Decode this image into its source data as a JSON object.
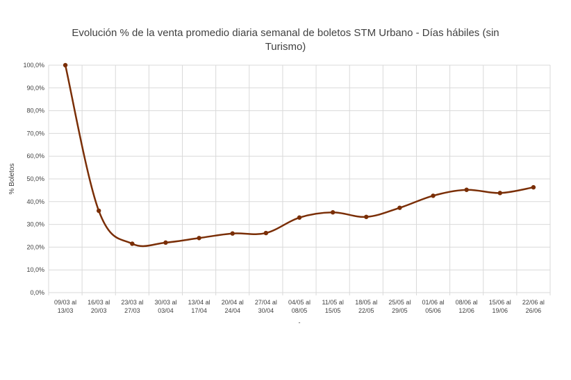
{
  "chart_data": {
    "type": "line",
    "title_lines": [
      "Evolución % de la venta promedio diaria semanal de boletos STM Urbano - Días hábiles (sin",
      "Turismo)"
    ],
    "ylabel": "% Boletos",
    "xlabel": "-",
    "ylim": [
      0,
      100
    ],
    "y_ticks": [
      "0,0%",
      "10,0%",
      "20,0%",
      "30,0%",
      "40,0%",
      "50,0%",
      "60,0%",
      "70,0%",
      "80,0%",
      "90,0%",
      "100,0%"
    ],
    "categories": [
      [
        "09/03 al",
        "13/03"
      ],
      [
        "16/03 al",
        "20/03"
      ],
      [
        "23/03 al",
        "27/03"
      ],
      [
        "30/03 al",
        "03/04"
      ],
      [
        "13/04 al",
        "17/04"
      ],
      [
        "20/04 al",
        "24/04"
      ],
      [
        "27/04 al",
        "30/04"
      ],
      [
        "04/05 al",
        "08/05"
      ],
      [
        "11/05 al",
        "15/05"
      ],
      [
        "18/05 al",
        "22/05"
      ],
      [
        "25/05 al",
        "29/05"
      ],
      [
        "01/06 al",
        "05/06"
      ],
      [
        "08/06 al",
        "12/06"
      ],
      [
        "15/06 al",
        "19/06"
      ],
      [
        "22/06 al",
        "26/06"
      ]
    ],
    "series": [
      {
        "values": [
          100,
          36,
          21.5,
          22,
          24,
          26,
          26.2,
          33,
          35.3,
          33.3,
          37.3,
          42.6,
          45.2,
          43.8,
          46.3
        ]
      }
    ],
    "grid": true,
    "color": "#7a2e06"
  }
}
